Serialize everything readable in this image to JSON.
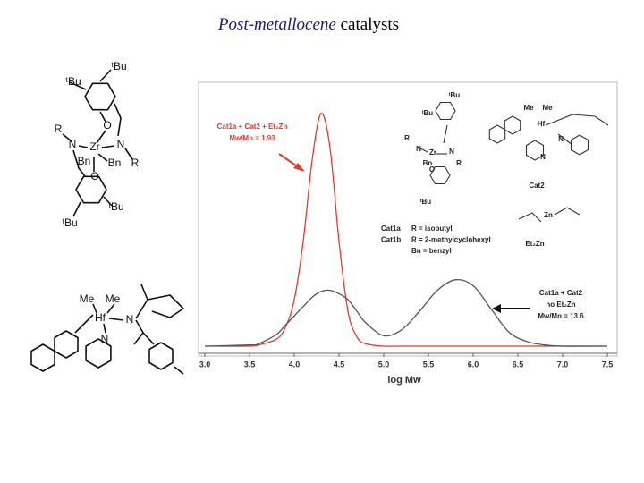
{
  "slide": {
    "title_italic": "Post-metallocene",
    "title_rest": "catalysts"
  },
  "structures": {
    "zr_complex": {
      "labels": [
        "ᵗBu",
        "ᵗBu",
        "O",
        "R",
        "N",
        "Zr",
        "N",
        "R",
        "Bn",
        "Bn",
        "O",
        "ᵗBu",
        "ᵗBu"
      ]
    },
    "hf_complex": {
      "labels": [
        "Me",
        "Me",
        "Hf",
        "N",
        "N"
      ]
    }
  },
  "inset": {
    "labels": [
      "ᵗBu",
      "ᵗBu",
      "R",
      "N",
      "Zr",
      "N",
      "R",
      "Bn",
      "O",
      "ᵗBu",
      "Me",
      "Me",
      "Hf",
      "N",
      "N",
      "Cat2",
      "Zn",
      "Et₂Zn"
    ],
    "legend": [
      [
        "Cat1a",
        "R = isobutyl"
      ],
      [
        "Cat1b",
        "R = 2-methylcyclohexyl"
      ],
      [
        "",
        "Bn = benzyl"
      ]
    ]
  },
  "chart_data": {
    "type": "line",
    "x_label": "log Mw",
    "annotations": [
      {
        "lines": [
          "Cat1a + Cat2 + Et₂Zn",
          "Mw/Mn = 1.93"
        ],
        "color": "#e8382e"
      },
      {
        "lines": [
          "Cat1a + Cat2",
          "no Et₂Zn",
          "Mw/Mn = 13.6"
        ],
        "color": "#222222"
      }
    ],
    "x": [
      3.0,
      3.5,
      3.6,
      3.8,
      3.9,
      4.0,
      4.1,
      4.2,
      4.3,
      4.4,
      4.5,
      4.6,
      4.7,
      4.8,
      5.0,
      5.2,
      5.4,
      5.6,
      5.8,
      6.0,
      6.2,
      6.4,
      6.6,
      6.8,
      7.0,
      7.5
    ],
    "series": [
      {
        "name": "Cat1a + Cat2 + Et₂Zn",
        "color": "#e8382e",
        "values": [
          0,
          0,
          0.005,
          0.03,
          0.08,
          0.2,
          0.45,
          0.8,
          1.0,
          0.85,
          0.45,
          0.15,
          0.04,
          0.01,
          0,
          0,
          0,
          0,
          0,
          0,
          0,
          0,
          0,
          0,
          0,
          0
        ]
      },
      {
        "name": "Cat1a + Cat2",
        "color": "#555555",
        "values": [
          0,
          0.005,
          0.01,
          0.05,
          0.09,
          0.13,
          0.17,
          0.21,
          0.235,
          0.24,
          0.225,
          0.2,
          0.15,
          0.1,
          0.045,
          0.07,
          0.15,
          0.24,
          0.285,
          0.26,
          0.16,
          0.06,
          0.02,
          0.005,
          0,
          0
        ]
      }
    ],
    "xlim": [
      3.0,
      7.5
    ],
    "ylim": [
      0,
      1.13
    ],
    "xticks": [
      {
        "value": 3,
        "label": "3.0"
      },
      3.5,
      {
        "value": 4,
        "label": "4.0"
      },
      4.5,
      {
        "value": 5,
        "label": "5.0"
      },
      5.5,
      {
        "value": 6,
        "label": "6.0"
      },
      6.5,
      {
        "value": 7,
        "label": "7.0"
      },
      7.5
    ]
  }
}
